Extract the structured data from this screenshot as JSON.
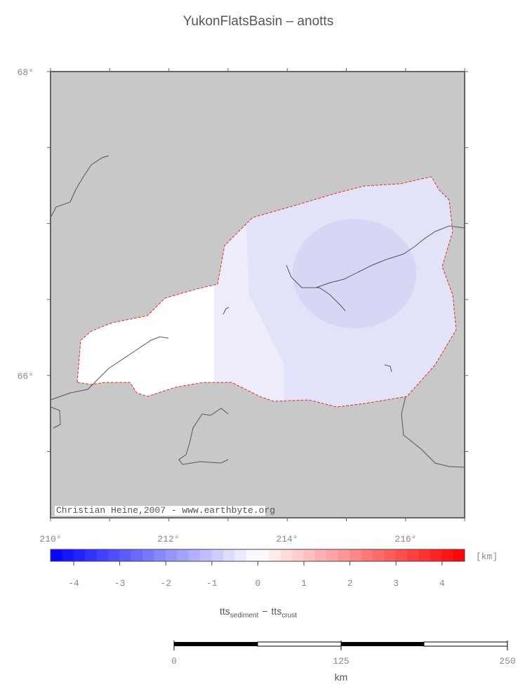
{
  "header": {
    "title": "YukonFlatsBasin – anotts"
  },
  "map": {
    "lat_labels": [
      "68°",
      "66°"
    ],
    "lon_labels": [
      "210°",
      "212°",
      "214°",
      "216°"
    ],
    "credit": "Christian Heine,2007 - www.earthbyte.org"
  },
  "colorbar": {
    "ticks": [
      "-4",
      "-3",
      "-2",
      "-1",
      "0",
      "1",
      "2",
      "3",
      "4"
    ],
    "unit": "[km]",
    "label": {
      "term1": "tts",
      "term1_sub": "sediment",
      "operator": "−",
      "term2": "tts",
      "term2_sub": "crust"
    }
  },
  "scalebar": {
    "ticks": [
      "0",
      "125",
      "250"
    ],
    "unit": "km"
  }
}
